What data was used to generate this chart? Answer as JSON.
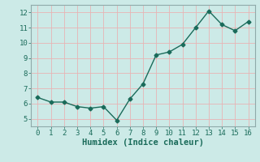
{
  "x": [
    0,
    1,
    2,
    3,
    4,
    5,
    6,
    7,
    8,
    9,
    10,
    11,
    12,
    13,
    14,
    15,
    16
  ],
  "y": [
    6.4,
    6.1,
    6.1,
    5.8,
    5.7,
    5.8,
    4.9,
    6.3,
    7.3,
    9.2,
    9.4,
    9.9,
    11.0,
    12.1,
    11.2,
    10.8,
    11.4
  ],
  "line_color": "#1a6b5a",
  "marker": "D",
  "marker_size": 2.5,
  "bg_color": "#cceae7",
  "grid_color": "#e8b4b4",
  "spine_color": "#8faaaa",
  "xlabel": "Humidex (Indice chaleur)",
  "label_color": "#1a6b5a",
  "tick_color": "#1a6b5a",
  "ylim": [
    4.5,
    12.5
  ],
  "yticks": [
    5,
    6,
    7,
    8,
    9,
    10,
    11,
    12
  ],
  "xticks": [
    0,
    1,
    2,
    3,
    4,
    5,
    6,
    7,
    8,
    9,
    10,
    11,
    12,
    13,
    14,
    15,
    16
  ],
  "tick_fontsize": 6.5,
  "xlabel_fontsize": 7.5
}
